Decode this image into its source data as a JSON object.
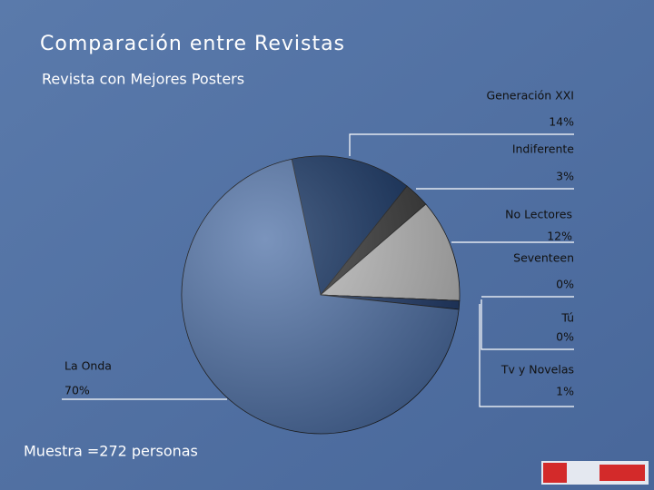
{
  "chart_data": {
    "type": "pie",
    "title": "Comparación entre Revistas",
    "subtitle": "Revista con Mejores Posters",
    "note": "Muestra =272 personas",
    "categories": [
      "Generación XXI",
      "Indiferente",
      "No Lectores",
      "Seventeen",
      "Tú",
      "Tv y Novelas",
      "La Onda"
    ],
    "values": [
      14,
      3,
      12,
      0,
      0,
      1,
      70
    ],
    "value_labels": [
      "14%",
      "3%",
      "12%",
      "0%",
      "0%",
      "1%",
      "70%"
    ],
    "colors": [
      "#0d2c5c",
      "#333333",
      "#bdbdbd",
      "#1c2f55",
      "#27406e",
      "#1f3a6a",
      "#4e70a6"
    ]
  }
}
